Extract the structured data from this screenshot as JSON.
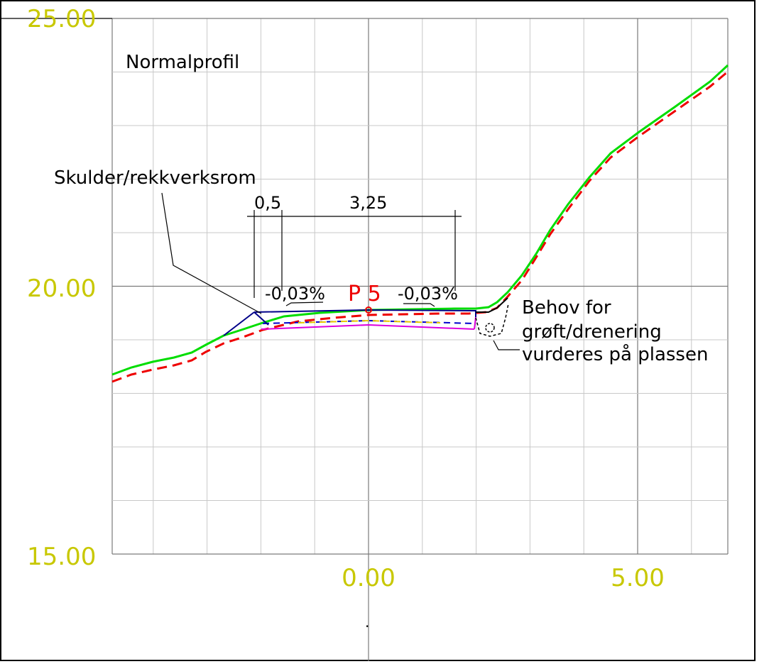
{
  "drawing": {
    "title": "Normalprofil",
    "point_label": "P 5",
    "shoulder_label": "Skulder/rekkverksrom",
    "dim_shoulder": "0,5",
    "dim_lane": "3,25",
    "slope_left": "-0,03%",
    "slope_right": "-0,03%",
    "note_line1": "Behov for",
    "note_line2": "grøft/drenering",
    "note_line3": "vurderes på plassen",
    "footer_mark": "."
  },
  "axes": {
    "y_labels": [
      "25.00",
      "20.00",
      "15.00"
    ],
    "x_labels": [
      "0.00",
      "5.00"
    ]
  },
  "colors": {
    "grid_minor": "#c8c8c8",
    "grid_major": "#7a7a7a",
    "axis_label": "#c8c800",
    "terrain": "#00dd00",
    "existing_terrain": "#ee0000",
    "point_label": "#ee0000",
    "road_outline": "#000088",
    "subbase": "#dd00dd",
    "frame": "#000000"
  }
}
